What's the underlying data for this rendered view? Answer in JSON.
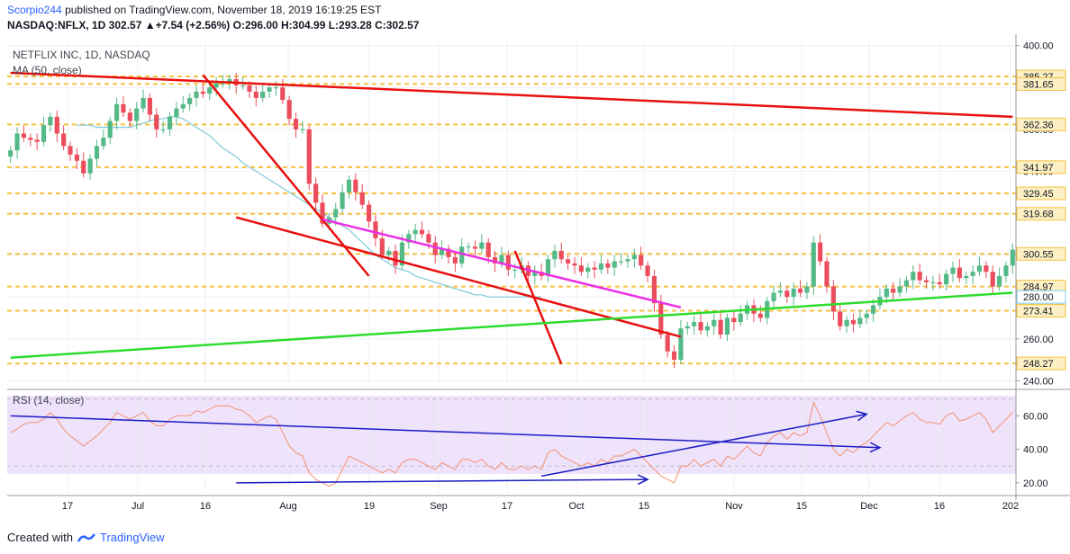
{
  "header": {
    "author": "Scorpio244",
    "published_text": "published on TradingView.com, November 18, 2019 16:19:25 EST",
    "symbol_line": "NASDAQ:NFLX, 1D  302.57  ▲+7.54 (+2.56%)  O:296.00  H:304.99  L:293.28  C:302.57"
  },
  "legend": {
    "main_title": "NETFLIX INC, 1D, NASDAQ",
    "ma_label": "MA (50, close)",
    "rsi_label": "RSI (14, close)"
  },
  "footer": {
    "created_with": "Created with",
    "brand": "TradingView"
  },
  "colors": {
    "up": "#53b987",
    "down": "#eb4d5c",
    "ma": "#7ec9d9",
    "level": "#f5c242",
    "red_trend": "#e81010",
    "green_trend": "#2ddc2d",
    "magenta": "#ee2ee6",
    "rsi_line": "#f29272",
    "rsi_band": "#efe2fb",
    "blue_arrow": "#1b1bc4"
  },
  "chart_data": [
    {
      "type": "candlestick",
      "title": "NETFLIX INC, 1D, NASDAQ",
      "ylim": [
        238,
        402
      ],
      "y_ticks": [
        "400.00",
        "380.00",
        "360.00",
        "340.00",
        "320.00",
        "300.00",
        "280.00",
        "260.00",
        "240.00"
      ],
      "x_tick_labels": [
        "17",
        "Jul",
        "16",
        "Aug",
        "19",
        "Sep",
        "17",
        "Oct",
        "15",
        "Nov",
        "15",
        "Dec",
        "16",
        "202"
      ],
      "levels": [
        385.27,
        381.65,
        362.36,
        341.97,
        329.45,
        319.68,
        300.55,
        284.97,
        273.41,
        248.27
      ],
      "level_labels": [
        "385.27",
        "381.65",
        "362.36",
        "341.97",
        "329.45",
        "319.68",
        "300.55",
        "284.97",
        "280.00",
        "273.41",
        "248.27"
      ],
      "ma_label_value": 280.0,
      "current_price": 302.57,
      "closes": [
        350,
        358,
        356,
        355,
        354,
        362,
        366,
        358,
        352,
        348,
        345,
        339,
        346,
        352,
        356,
        364,
        372,
        368,
        364,
        370,
        375,
        367,
        360,
        360,
        366,
        370,
        372,
        375,
        378,
        377,
        380,
        382,
        382,
        384,
        381,
        381,
        378,
        375,
        378,
        380,
        380,
        374,
        365,
        360,
        360,
        334,
        325,
        315,
        318,
        322,
        330,
        336,
        330,
        324,
        316,
        308,
        300,
        302,
        295,
        306,
        310,
        312,
        310,
        306,
        300,
        303,
        299,
        296,
        304,
        304,
        303,
        306,
        299,
        296,
        300,
        293,
        293,
        295,
        290,
        292,
        290,
        298,
        302,
        298,
        296,
        295,
        292,
        294,
        293,
        296,
        294,
        297,
        297,
        298,
        300,
        295,
        290,
        277,
        262,
        254,
        250,
        265,
        266,
        268,
        264,
        266,
        269,
        262,
        270,
        268,
        272,
        276,
        272,
        270,
        278,
        282,
        283,
        280,
        284,
        282,
        285,
        306,
        297,
        285,
        273,
        266,
        269,
        267,
        270,
        272,
        276,
        280,
        284,
        282,
        285,
        288,
        292,
        288,
        287,
        287,
        286,
        291,
        294,
        289,
        290,
        292,
        295,
        292,
        285,
        290,
        295,
        302.57
      ],
      "ma50": [
        362,
        362,
        362,
        361,
        361,
        361,
        361,
        361,
        361,
        362,
        363,
        364,
        365,
        365,
        366,
        366,
        365,
        363,
        361,
        359,
        357,
        354,
        351,
        349,
        347,
        344,
        342,
        340,
        338,
        336,
        334,
        332,
        330,
        328,
        326,
        324,
        322,
        320,
        318,
        316,
        314,
        312,
        309,
        306,
        303,
        300,
        298,
        296,
        294,
        293,
        292,
        290,
        289,
        288,
        287,
        286,
        285,
        284,
        283,
        282,
        281,
        281,
        280,
        280,
        280,
        280,
        280,
        280,
        280,
        280,
        280
      ],
      "trendlines": [
        {
          "name": "red-resistance-long",
          "from": [
            0,
            387
          ],
          "to": [
            151,
            366
          ]
        },
        {
          "name": "red-steep-decline",
          "from": [
            29,
            386
          ],
          "to": [
            54,
            290
          ]
        },
        {
          "name": "red-channel-lower",
          "from": [
            34,
            318
          ],
          "to": [
            101,
            261
          ]
        },
        {
          "name": "magenta-channel-upper",
          "from": [
            47,
            317
          ],
          "to": [
            101,
            275
          ]
        },
        {
          "name": "red-september-drop",
          "from": [
            76,
            302
          ],
          "to": [
            83,
            248
          ]
        },
        {
          "name": "green-support",
          "from": [
            0,
            251
          ],
          "to": [
            151,
            282
          ]
        }
      ]
    },
    {
      "type": "line",
      "title": "RSI (14, close)",
      "ylim": [
        14,
        72
      ],
      "y_ticks": [
        "60.00",
        "40.00",
        "20.00"
      ],
      "band": [
        30,
        70
      ],
      "values": [
        50,
        52,
        55,
        56,
        56,
        58,
        62,
        58,
        52,
        48,
        45,
        42,
        45,
        48,
        52,
        56,
        62,
        60,
        58,
        60,
        62,
        57,
        54,
        54,
        58,
        60,
        60,
        60,
        63,
        62,
        64,
        66,
        66,
        66,
        64,
        63,
        60,
        56,
        58,
        60,
        58,
        50,
        42,
        38,
        36,
        26,
        22,
        20,
        18,
        20,
        28,
        36,
        34,
        32,
        30,
        28,
        26,
        28,
        26,
        32,
        34,
        34,
        32,
        30,
        28,
        32,
        30,
        28,
        34,
        34,
        32,
        34,
        30,
        28,
        32,
        28,
        28,
        30,
        28,
        30,
        28,
        38,
        40,
        36,
        34,
        32,
        30,
        32,
        30,
        34,
        32,
        36,
        36,
        38,
        40,
        36,
        32,
        28,
        24,
        22,
        20,
        30,
        30,
        34,
        30,
        32,
        34,
        30,
        36,
        34,
        38,
        42,
        38,
        36,
        44,
        48,
        50,
        46,
        50,
        48,
        50,
        68,
        60,
        50,
        40,
        36,
        40,
        38,
        42,
        44,
        48,
        52,
        56,
        54,
        57,
        60,
        62,
        58,
        56,
        56,
        55,
        60,
        62,
        57,
        58,
        60,
        62,
        58,
        50,
        54,
        58,
        62
      ],
      "arrows": [
        {
          "name": "rsi-downtrend-arrow",
          "from": [
            0,
            60
          ],
          "to": [
            131,
            41
          ]
        },
        {
          "name": "rsi-uptrend-arrow",
          "from": [
            80,
            24
          ],
          "to": [
            129,
            61
          ]
        },
        {
          "name": "rsi-lower-arrow",
          "from": [
            34,
            20
          ],
          "to": [
            96,
            22
          ]
        }
      ]
    }
  ]
}
